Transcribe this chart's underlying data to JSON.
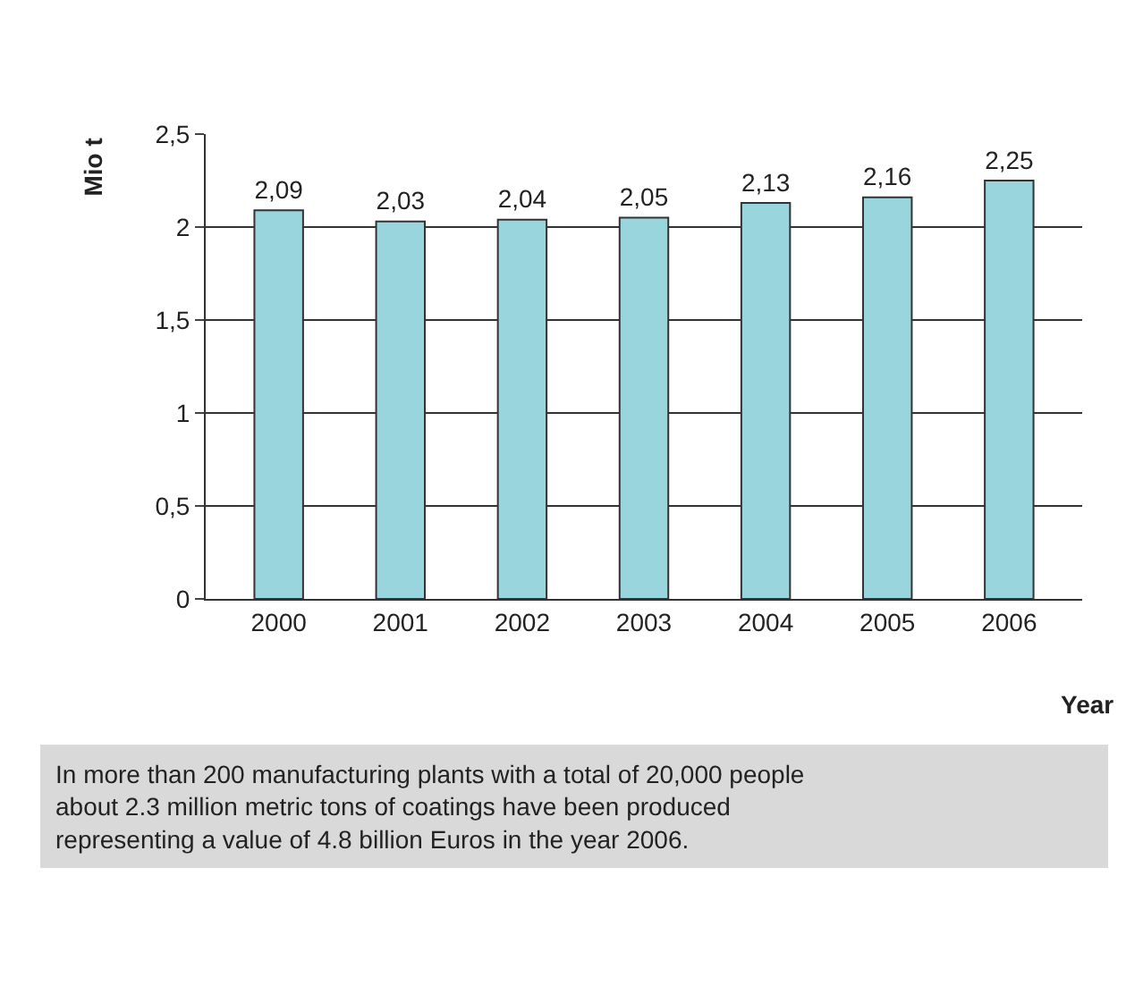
{
  "chart_data": {
    "type": "bar",
    "xlabel": "Year",
    "ylabel": "Mio t",
    "categories": [
      "2000",
      "2001",
      "2002",
      "2003",
      "2004",
      "2005",
      "2006"
    ],
    "values": [
      2.09,
      2.03,
      2.04,
      2.05,
      2.13,
      2.16,
      2.25
    ],
    "value_labels": [
      "2,09",
      "2,03",
      "2,04",
      "2,05",
      "2,13",
      "2,16",
      "2,25"
    ],
    "color": "#99d5dc",
    "ylim": [
      0,
      2.5
    ],
    "yticks": [
      0,
      {
        "value": 0.5,
        "label": "0,5"
      },
      1,
      {
        "value": 1.5,
        "label": "1,5"
      },
      2,
      {
        "value": 2.5,
        "label": "2,5"
      }
    ],
    "grid": "y",
    "legend": false,
    "annotations": [
      "In more than 200 manufacturing plants with a total of 20,000 people about 2.3 million metric tons of coatings have been produced representing a value of 4.8 billion Euros in the year 2006."
    ]
  }
}
